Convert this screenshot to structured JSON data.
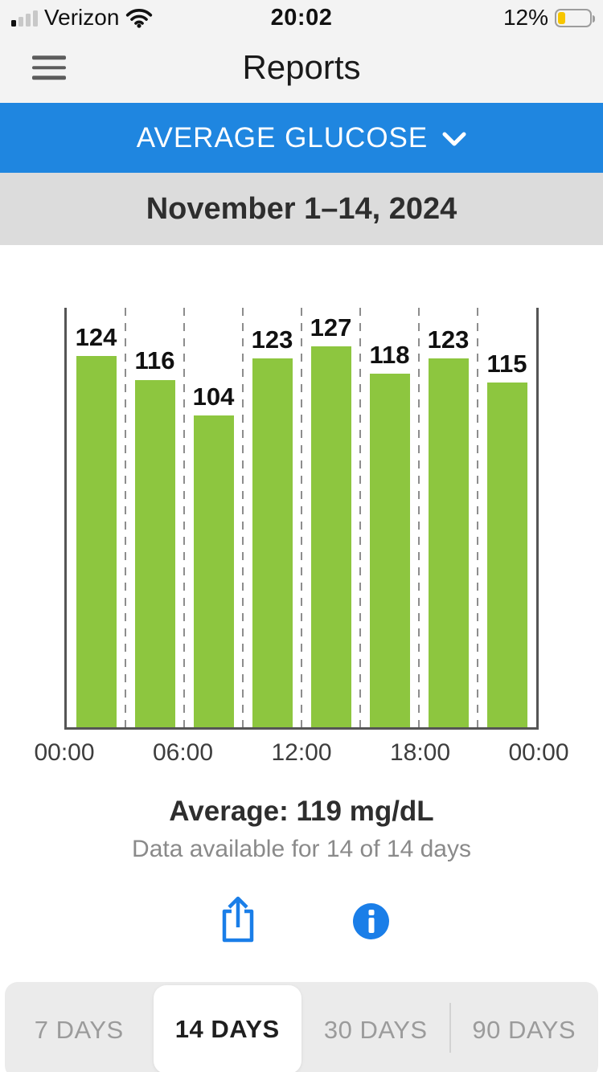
{
  "status_bar": {
    "carrier": "Verizon",
    "time": "20:02",
    "battery_percent": "12%",
    "battery_color": "#f7c600"
  },
  "header": {
    "title": "Reports"
  },
  "report_selector": {
    "label": "AVERAGE GLUCOSE"
  },
  "date_range": {
    "label": "November 1–14, 2024"
  },
  "chart_data": {
    "type": "bar",
    "values": [
      124,
      116,
      104,
      123,
      127,
      118,
      123,
      115
    ],
    "x_tick_labels": [
      "00:00",
      "06:00",
      "12:00",
      "18:00",
      "00:00"
    ],
    "x_tick_positions_pct": [
      0,
      25,
      50,
      75,
      100
    ],
    "ylim": [
      0,
      140
    ],
    "bar_color": "#8dc63f",
    "unit": "mg/dL",
    "grid": "dashed-vertical",
    "slots": 8
  },
  "summary": {
    "average": "Average: 119 mg/dL",
    "availability": "Data available for 14 of 14 days"
  },
  "actions": {
    "share_color": "#1a7ee8",
    "info_color": "#1a7ee8"
  },
  "segmented_control": {
    "options": [
      {
        "label": "7 DAYS",
        "selected": false
      },
      {
        "label": "14 DAYS",
        "selected": true
      },
      {
        "label": "30 DAYS",
        "selected": false
      },
      {
        "label": "90 DAYS",
        "selected": false
      }
    ]
  }
}
